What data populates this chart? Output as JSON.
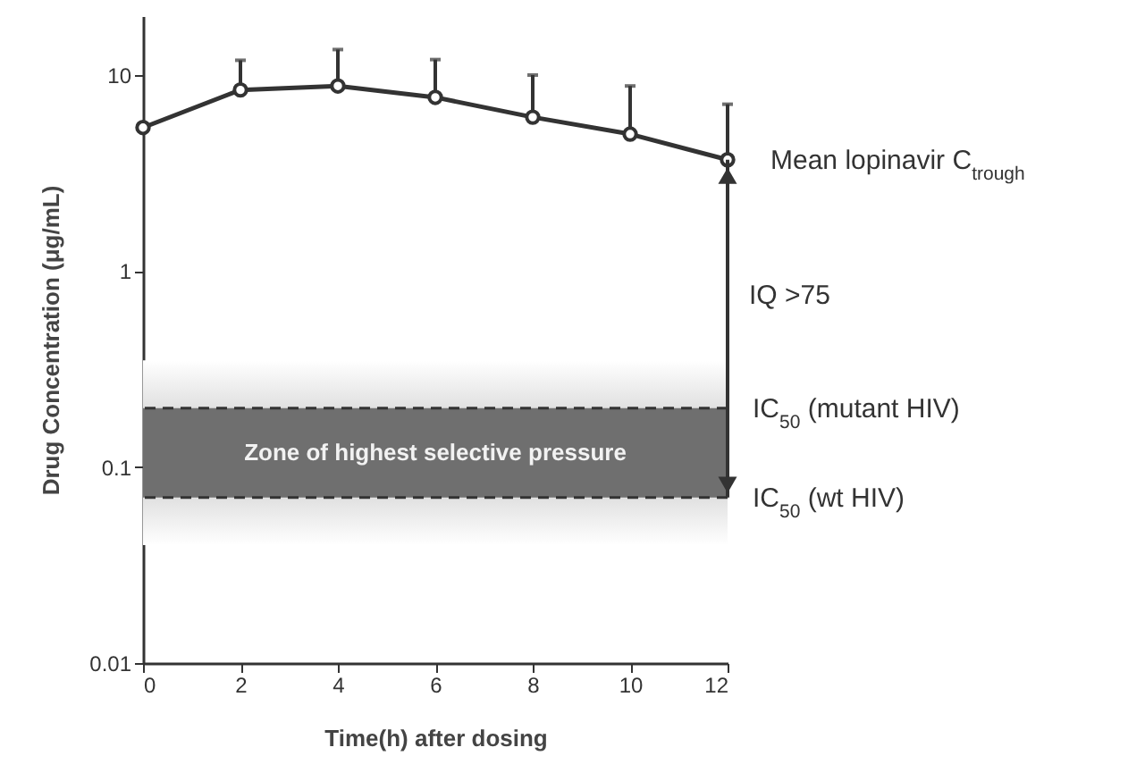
{
  "chart_data": {
    "type": "line",
    "xlabel": "Time(h) after dosing",
    "ylabel": "Drug Concentration (μg/mL)",
    "x": [
      0,
      2,
      4,
      6,
      8,
      10,
      12
    ],
    "series": [
      {
        "color": "#333333",
        "values": [
          5.4,
          8.4,
          8.8,
          7.7,
          6.1,
          5.0,
          3.7
        ],
        "errors": [
          null,
          [
            8.4,
            11.9
          ],
          [
            8.8,
            13.5
          ],
          [
            7.7,
            12
          ],
          [
            6.1,
            10
          ],
          [
            5.0,
            8.8
          ],
          [
            3.7,
            7.1
          ]
        ]
      }
    ],
    "xlim": [
      0,
      12
    ],
    "xticks": [
      0,
      2,
      4,
      6,
      8,
      10,
      12
    ],
    "ylim": [
      0.01,
      20
    ],
    "yticks": [
      0.01,
      0.1,
      1,
      10
    ],
    "log": true,
    "marker": "circle",
    "line_style": "solid",
    "grid": false,
    "bands": [
      {
        "axis": "y",
        "from": 0.04,
        "to": 0.35,
        "color": "#c4c4c4"
      },
      {
        "axis": "y",
        "from": 0.07,
        "to": 0.2,
        "label": "Zone of highest selective pressure",
        "color": "#6f6f6f"
      }
    ],
    "ref_lines": [
      {
        "axis": "y",
        "value": 0.2,
        "label": "IC$_{50}$ (mutant HIV)",
        "line_style": "dashed",
        "color": "#333333"
      },
      {
        "axis": "y",
        "value": 0.07,
        "label": "IC$_{50}$ (wt HIV)",
        "line_style": "dashed",
        "color": "#333333"
      }
    ],
    "annotations": [
      {
        "text": "Mean lopinavir C$_{trough}$",
        "x": 12,
        "y": 3.7
      },
      "IQ >75"
    ]
  }
}
